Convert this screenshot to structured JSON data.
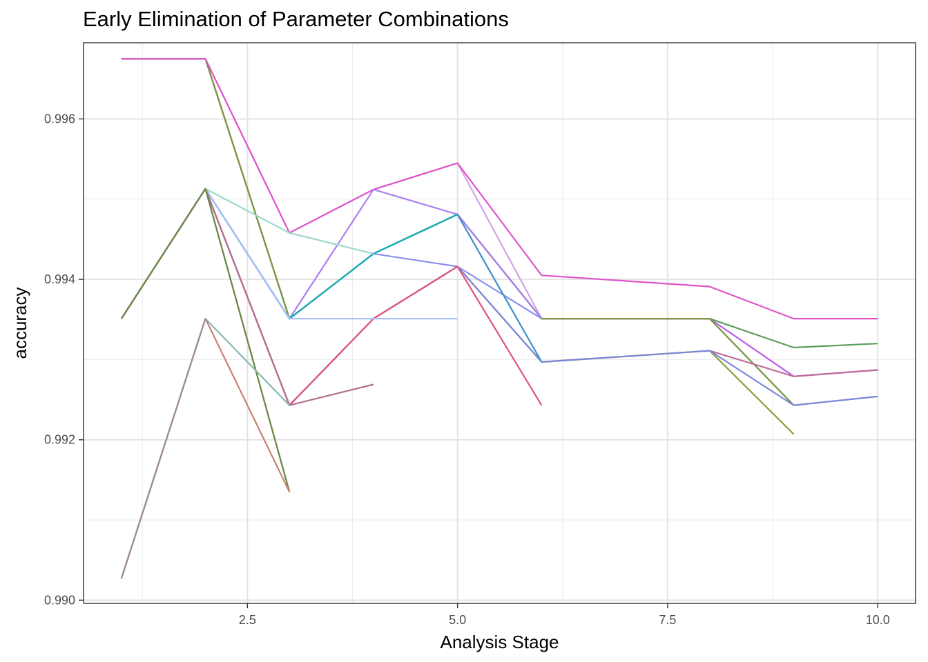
{
  "chart_data": {
    "type": "line",
    "title": "Early Elimination of Parameter Combinations",
    "xlabel": "Analysis Stage",
    "ylabel": "accuracy",
    "xlim": [
      0.55,
      10.45
    ],
    "ylim": [
      0.98996,
      0.99695
    ],
    "x_ticks": [
      2.5,
      5.0,
      7.5,
      10.0
    ],
    "x_tick_labels": [
      "2.5",
      "5.0",
      "7.5",
      "10.0"
    ],
    "y_ticks": [
      0.99,
      0.992,
      0.994,
      0.996
    ],
    "y_tick_labels": [
      "0.990",
      "0.992",
      "0.994",
      "0.996"
    ],
    "grid": true,
    "legend": "none",
    "series": [
      {
        "color": "#d4a0e8",
        "points": [
          [
            1,
            0.99675
          ],
          [
            2,
            0.99675
          ],
          [
            3,
            0.99458
          ],
          [
            4,
            0.99512
          ],
          [
            5,
            0.99545
          ],
          [
            6,
            0.99351
          ],
          [
            7,
            0.99351
          ],
          [
            8,
            0.99351
          ],
          [
            9,
            0.99279
          ],
          [
            10,
            0.99287
          ]
        ]
      },
      {
        "color": "#5a9e5a",
        "points": [
          [
            1,
            0.99675
          ],
          [
            2,
            0.99675
          ],
          [
            3,
            0.99351
          ],
          [
            4,
            0.99432
          ],
          [
            5,
            0.99481
          ],
          [
            6,
            0.99351
          ],
          [
            7,
            0.99351
          ],
          [
            8,
            0.99351
          ],
          [
            9,
            0.99315
          ],
          [
            10,
            0.9932
          ]
        ]
      },
      {
        "color": "#7b7fd8",
        "points": [
          [
            1,
            0.99675
          ],
          [
            2,
            0.99675
          ],
          [
            3,
            0.99351
          ],
          [
            4,
            0.99432
          ],
          [
            5,
            0.99481
          ],
          [
            6,
            0.99351
          ],
          [
            7,
            0.99351
          ],
          [
            8,
            0.99351
          ],
          [
            9,
            0.99243
          ],
          [
            10,
            0.99254
          ]
        ]
      },
      {
        "color": "#bf5fe8",
        "points": [
          [
            1,
            0.99675
          ],
          [
            2,
            0.99675
          ],
          [
            3,
            0.99351
          ],
          [
            4,
            0.99432
          ],
          [
            5,
            0.99481
          ],
          [
            6,
            0.99351
          ],
          [
            7,
            0.99351
          ],
          [
            8,
            0.99351
          ],
          [
            9,
            0.99279
          ],
          [
            10,
            0.99287
          ]
        ]
      },
      {
        "color": "#7a9a3a",
        "points": [
          [
            1,
            0.99675
          ],
          [
            2,
            0.99675
          ],
          [
            3,
            0.99351
          ],
          [
            4,
            0.99432
          ],
          [
            5,
            0.99481
          ],
          [
            6,
            0.99351
          ],
          [
            7,
            0.99351
          ],
          [
            8,
            0.99351
          ],
          [
            9,
            0.99243
          ]
        ]
      },
      {
        "color": "#e052c8",
        "points": [
          [
            1,
            0.99675
          ],
          [
            2,
            0.99675
          ],
          [
            3,
            0.99458
          ],
          [
            4,
            0.99512
          ],
          [
            5,
            0.99545
          ],
          [
            6,
            0.99405
          ],
          [
            7,
            0.99398
          ],
          [
            8,
            0.99391
          ],
          [
            9,
            0.99351
          ],
          [
            10,
            0.99351
          ]
        ]
      },
      {
        "color": "#8a9a3a",
        "points": [
          [
            1,
            0.99351
          ],
          [
            2,
            0.99513
          ],
          [
            3,
            0.99351
          ],
          [
            4,
            0.99432
          ],
          [
            5,
            0.99481
          ],
          [
            6,
            0.99297
          ],
          [
            7,
            0.99304
          ],
          [
            8,
            0.99311
          ],
          [
            9,
            0.99207
          ]
        ]
      },
      {
        "color": "#c06a9a",
        "points": [
          [
            1,
            0.99351
          ],
          [
            2,
            0.99513
          ],
          [
            3,
            0.99243
          ],
          [
            4,
            0.99351
          ],
          [
            5,
            0.99416
          ],
          [
            6,
            0.99297
          ],
          [
            7,
            0.99304
          ],
          [
            8,
            0.99311
          ],
          [
            9,
            0.99279
          ],
          [
            10,
            0.99287
          ]
        ]
      },
      {
        "color": "#7a88d8",
        "points": [
          [
            1,
            0.99351
          ],
          [
            2,
            0.99513
          ],
          [
            3,
            0.99243
          ],
          [
            4,
            0.99351
          ],
          [
            5,
            0.99416
          ],
          [
            6,
            0.99297
          ],
          [
            7,
            0.99304
          ],
          [
            8,
            0.99311
          ],
          [
            9,
            0.99243
          ],
          [
            10,
            0.99254
          ]
        ]
      },
      {
        "color": "#a97ff0",
        "points": [
          [
            1,
            0.99351
          ],
          [
            2,
            0.99513
          ],
          [
            3,
            0.99351
          ],
          [
            4,
            0.99512
          ],
          [
            5,
            0.99481
          ],
          [
            6,
            0.99351
          ]
        ]
      },
      {
        "color": "#8a8ef0",
        "points": [
          [
            1,
            0.99351
          ],
          [
            2,
            0.99513
          ],
          [
            3,
            0.99351
          ],
          [
            4,
            0.99432
          ],
          [
            5,
            0.99416
          ],
          [
            6,
            0.99351
          ]
        ]
      },
      {
        "color": "#3f92d6",
        "points": [
          [
            1,
            0.99351
          ],
          [
            2,
            0.99513
          ],
          [
            3,
            0.99351
          ],
          [
            4,
            0.99432
          ],
          [
            5,
            0.99481
          ],
          [
            6,
            0.99297
          ]
        ]
      },
      {
        "color": "#17b0b5",
        "points": [
          [
            1,
            0.99351
          ],
          [
            2,
            0.99513
          ],
          [
            3,
            0.99351
          ],
          [
            4,
            0.99432
          ],
          [
            5,
            0.99481
          ]
        ]
      },
      {
        "color": "#e0527a",
        "points": [
          [
            1,
            0.99351
          ],
          [
            2,
            0.99513
          ],
          [
            3,
            0.99243
          ],
          [
            4,
            0.99351
          ],
          [
            5,
            0.99416
          ],
          [
            6,
            0.99243
          ]
        ]
      },
      {
        "color": "#a8c0f8",
        "points": [
          [
            1,
            0.99351
          ],
          [
            2,
            0.99513
          ],
          [
            3,
            0.99351
          ],
          [
            4,
            0.99351
          ],
          [
            5,
            0.99351
          ]
        ]
      },
      {
        "color": "#9ad8cc",
        "points": [
          [
            1,
            0.99351
          ],
          [
            2,
            0.99513
          ],
          [
            3,
            0.99458
          ],
          [
            4,
            0.99432
          ]
        ]
      },
      {
        "color": "#b07090",
        "points": [
          [
            1,
            0.99351
          ],
          [
            2,
            0.99513
          ],
          [
            3,
            0.99243
          ],
          [
            4,
            0.99269
          ]
        ]
      },
      {
        "color": "#9a8a3a",
        "points": [
          [
            1,
            0.99351
          ],
          [
            2,
            0.99513
          ],
          [
            3,
            0.99135
          ]
        ]
      },
      {
        "color": "#6a8a4a",
        "points": [
          [
            1,
            0.99351
          ],
          [
            2,
            0.99513
          ],
          [
            3,
            0.99135
          ]
        ]
      },
      {
        "color": "#c88070",
        "points": [
          [
            1,
            0.99027
          ],
          [
            2,
            0.99351
          ],
          [
            3,
            0.99135
          ]
        ]
      },
      {
        "color": "#86b8b0",
        "points": [
          [
            1,
            0.99027
          ],
          [
            2,
            0.99351
          ],
          [
            3,
            0.99243
          ]
        ]
      },
      {
        "color": "#a08898",
        "points": [
          [
            1,
            0.99027
          ],
          [
            2,
            0.99351
          ]
        ]
      }
    ]
  }
}
